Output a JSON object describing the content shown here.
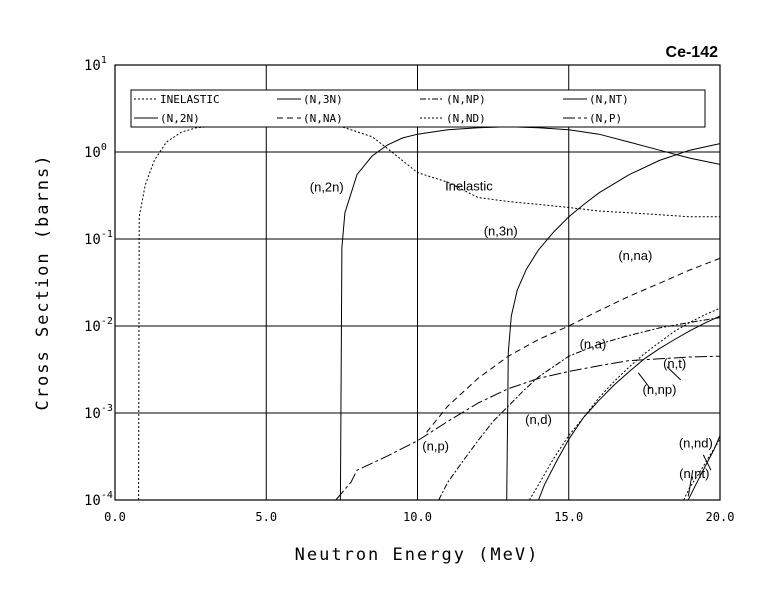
{
  "chart_data": {
    "type": "line",
    "title": "Ce-142",
    "xlabel": "Neutron Energy (MeV)",
    "ylabel": "Cross Section (barns)",
    "xlim": [
      0,
      20
    ],
    "ylim": [
      0.0001,
      10
    ],
    "yscale": "log",
    "grid": true,
    "legend_position": "top",
    "x_ticks": [
      "0.0",
      "5.0",
      "10.0",
      "15.0",
      "20.0"
    ],
    "y_ticks": [
      {
        "base": "10",
        "exp": "1"
      },
      {
        "base": "10",
        "exp": "0"
      },
      {
        "base": "10",
        "exp": "-1"
      },
      {
        "base": "10",
        "exp": "-2"
      },
      {
        "base": "10",
        "exp": "-3"
      },
      {
        "base": "10",
        "exp": "-4"
      }
    ],
    "legend": [
      {
        "label": "INELASTIC",
        "dash": "2,2"
      },
      {
        "label": "(N,3N)",
        "dash": ""
      },
      {
        "label": "(N,NP)",
        "dash": "6,2,2,2"
      },
      {
        "label": "(N,NT)",
        "dash": ""
      },
      {
        "label": "(N,2N)",
        "dash": ""
      },
      {
        "label": "(N,NA)",
        "dash": "6,4"
      },
      {
        "label": "(N,ND)",
        "dash": "2,2"
      },
      {
        "label": "(N,P)",
        "dash": "12,3,3,3"
      }
    ],
    "series": [
      {
        "name": "INELASTIC",
        "dash": "2,2",
        "x": [
          0.78,
          0.8,
          1.0,
          1.3,
          1.7,
          2.2,
          2.7,
          3.5,
          5.0,
          6.5,
          7.5,
          8.5,
          9.0,
          10.0,
          11.0,
          12.0,
          13.0,
          14.0,
          15.0,
          16.0,
          17.0,
          18.0,
          19.0,
          20.0
        ],
        "y": [
          0.0001,
          0.18,
          0.42,
          0.8,
          1.3,
          1.7,
          1.9,
          2.0,
          2.0,
          2.0,
          1.95,
          1.5,
          1.1,
          0.58,
          0.45,
          0.3,
          0.27,
          0.25,
          0.23,
          0.21,
          0.2,
          0.19,
          0.18,
          0.18
        ]
      },
      {
        "name": "(N,2N)",
        "dash": "",
        "x": [
          7.45,
          7.5,
          7.6,
          8.0,
          8.5,
          9.0,
          9.5,
          10.0,
          11.0,
          12.0,
          13.0,
          14.0,
          15.0,
          16.0,
          17.0,
          18.0,
          19.0,
          20.0
        ],
        "y": [
          0.0001,
          0.08,
          0.2,
          0.55,
          0.9,
          1.2,
          1.45,
          1.6,
          1.8,
          1.9,
          1.95,
          1.9,
          1.8,
          1.6,
          1.3,
          1.05,
          0.85,
          0.72
        ]
      },
      {
        "name": "(N,3N)",
        "dash": "",
        "x": [
          12.95,
          13.0,
          13.1,
          13.3,
          13.6,
          14.0,
          14.5,
          15.0,
          15.5,
          16.0,
          17.0,
          18.0,
          19.0,
          20.0
        ],
        "y": [
          0.0001,
          0.005,
          0.013,
          0.026,
          0.045,
          0.075,
          0.12,
          0.18,
          0.25,
          0.34,
          0.55,
          0.8,
          1.05,
          1.25
        ]
      },
      {
        "name": "(N,NA)",
        "dash": "6,4",
        "x": [
          10.3,
          11.0,
          12.0,
          13.0,
          14.0,
          15.0,
          16.0,
          17.0,
          18.0,
          19.0,
          20.0
        ],
        "y": [
          0.0006,
          0.0012,
          0.0025,
          0.0045,
          0.007,
          0.01,
          0.015,
          0.022,
          0.031,
          0.044,
          0.06
        ]
      },
      {
        "name": "(N,P)",
        "dash": "12,3,3,3",
        "x": [
          7.3,
          7.8,
          8.0,
          9.0,
          10.0,
          11.0,
          12.0,
          13.0,
          14.0,
          15.0,
          16.0,
          17.0,
          18.0,
          19.0,
          20.0
        ],
        "y": [
          0.0001,
          0.00016,
          0.00022,
          0.00032,
          0.00048,
          0.0008,
          0.0013,
          0.0019,
          0.0025,
          0.003,
          0.0035,
          0.004,
          0.0042,
          0.0044,
          0.0045
        ]
      },
      {
        "name": "(N,NP)",
        "dash": "6,2,2,2",
        "x": [
          10.7,
          11.0,
          11.5,
          12.0,
          12.5,
          13.0,
          13.5,
          14.0,
          15.0,
          16.0,
          17.0,
          18.0,
          19.0,
          20.0
        ],
        "y": [
          0.0001,
          0.00016,
          0.00028,
          0.00048,
          0.0008,
          0.0012,
          0.0018,
          0.0026,
          0.0045,
          0.0062,
          0.0078,
          0.0095,
          0.011,
          0.0125
        ]
      },
      {
        "name": "(N,NT)",
        "dash": "",
        "x": [
          14.0,
          14.2,
          14.6,
          15.0,
          15.5,
          16.0,
          16.5,
          17.0,
          17.5,
          18.0,
          18.5,
          19.0,
          19.5,
          20.0
        ],
        "y": [
          0.0001,
          0.00015,
          0.00028,
          0.0005,
          0.0009,
          0.0014,
          0.0021,
          0.003,
          0.0042,
          0.0055,
          0.007,
          0.0088,
          0.0108,
          0.013
        ]
      },
      {
        "name": "(N,ND)",
        "dash": "2,2",
        "x": [
          13.7,
          14.0,
          14.5,
          15.0,
          15.5,
          16.0,
          16.5,
          17.0,
          17.5,
          18.0,
          18.5,
          19.0,
          19.5,
          20.0
        ],
        "y": [
          0.0001,
          0.00015,
          0.0003,
          0.00055,
          0.0009,
          0.0015,
          0.0023,
          0.0034,
          0.0048,
          0.0065,
          0.0087,
          0.011,
          0.0135,
          0.016
        ]
      },
      {
        "name": "(n,nd) low",
        "dash": "2,2",
        "x": [
          18.8,
          19.0,
          19.3,
          19.6,
          20.0
        ],
        "y": [
          0.0001,
          0.00014,
          0.0002,
          0.0003,
          0.0005
        ]
      },
      {
        "name": "(n,nt) low",
        "dash": "",
        "x": [
          18.95,
          19.2,
          19.5,
          19.8,
          20.0
        ],
        "y": [
          0.0001,
          0.00015,
          0.00024,
          0.00038,
          0.00055
        ]
      }
    ],
    "annotations": [
      {
        "text": "(n,2n)",
        "x": 7.0,
        "y": 0.35
      },
      {
        "text": "Inelastic",
        "x": 11.7,
        "y": 0.36
      },
      {
        "text": "(n,3n)",
        "x": 12.75,
        "y": 0.11
      },
      {
        "text": "(n,na)",
        "x": 17.2,
        "y": 0.057
      },
      {
        "text": "(n,a)",
        "x": 15.8,
        "y": 0.0055
      },
      {
        "text": "(n,t)",
        "x": 18.5,
        "y": 0.0033
      },
      {
        "text": "(n,np)",
        "x": 18.0,
        "y": 0.00165
      },
      {
        "text": "(n,d)",
        "x": 14.0,
        "y": 0.00075
      },
      {
        "text": "(n,p)",
        "x": 10.6,
        "y": 0.00037
      },
      {
        "text": "(n,nd)",
        "x": 19.2,
        "y": 0.0004
      },
      {
        "text": "(n,nt)",
        "x": 19.15,
        "y": 0.00018
      }
    ]
  }
}
